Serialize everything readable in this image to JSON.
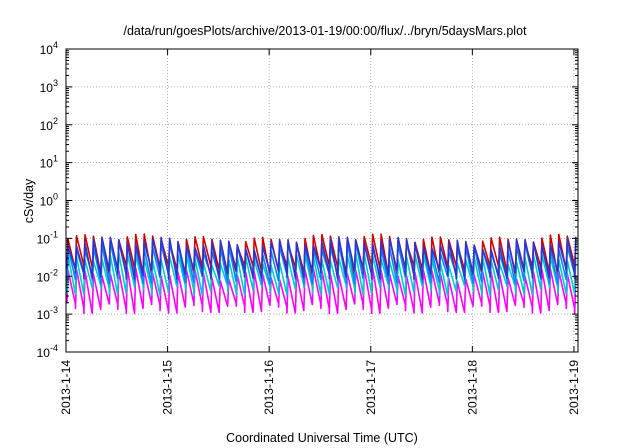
{
  "chart_data": {
    "type": "line",
    "title": "/data/run/goesPlots/archive/2013-01-19/00:00/flux/../bryn/5daysMars.plot",
    "xlabel": "Coordinated Universal Time (UTC)",
    "ylabel": "cSv/day",
    "yscale": "log",
    "ylim": [
      0.0001,
      10000
    ],
    "xlim": [
      0,
      5.04
    ],
    "grid": true,
    "legend": "none",
    "y_ticks": [
      {
        "value": 0.0001,
        "base": "10",
        "exp": "-4"
      },
      {
        "value": 0.001,
        "base": "10",
        "exp": "-3"
      },
      {
        "value": 0.01,
        "base": "10",
        "exp": "-2"
      },
      {
        "value": 0.1,
        "base": "10",
        "exp": "-1"
      },
      {
        "value": 1,
        "base": "10",
        "exp": "0"
      },
      {
        "value": 10,
        "base": "10",
        "exp": "1"
      },
      {
        "value": 100,
        "base": "10",
        "exp": "2"
      },
      {
        "value": 1000,
        "base": "10",
        "exp": "3"
      },
      {
        "value": 10000,
        "base": "10",
        "exp": "4"
      }
    ],
    "x_ticks": [
      {
        "value": 0,
        "label": "2013-1-14"
      },
      {
        "value": 1,
        "label": "2013-1-15"
      },
      {
        "value": 2,
        "label": "2013-1-16"
      },
      {
        "value": 3,
        "label": "2013-1-17"
      },
      {
        "value": 4,
        "label": "2013-1-18"
      },
      {
        "value": 5,
        "label": "2013-1-19"
      }
    ],
    "sawtooth_period_days": 0.0833,
    "series": [
      {
        "color": "#d00000",
        "peak": 0.095,
        "trough": 0.015
      },
      {
        "color": "#ff00ff",
        "peak": 0.012,
        "trough": 0.0015
      },
      {
        "color": "#00cccc",
        "peak": 0.03,
        "trough": 0.0045
      },
      {
        "color": "#0088ff",
        "peak": 0.06,
        "trough": 0.009
      },
      {
        "color": "#3333cc",
        "peak": 0.08,
        "trough": 0.012
      }
    ]
  }
}
